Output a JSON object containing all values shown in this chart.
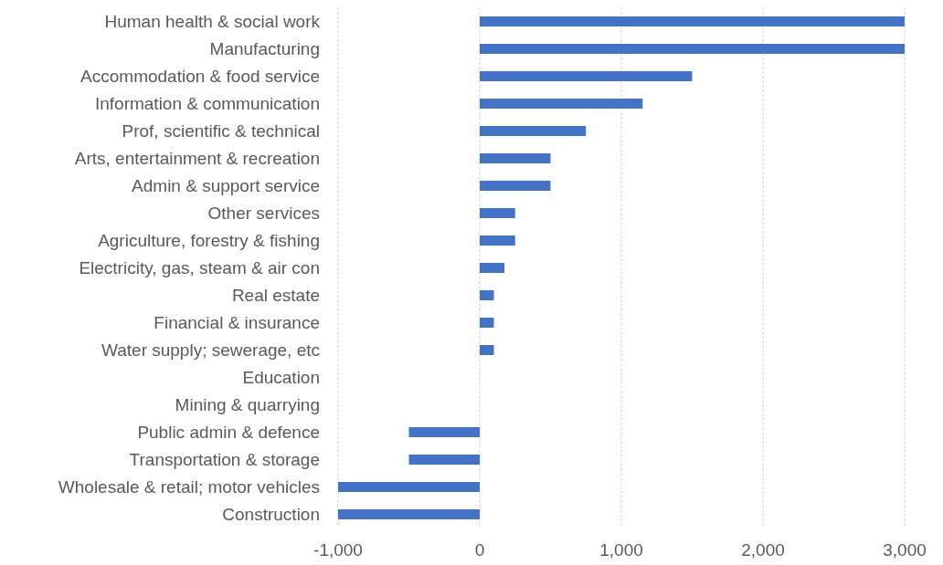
{
  "chart_data": {
    "type": "bar",
    "orientation": "horizontal",
    "categories": [
      "Human health & social work",
      "Manufacturing",
      "Accommodation & food service ",
      "Information & communication",
      "Prof, scientific & technical",
      "Arts, entertainment & recreation",
      "Admin & support service",
      "Other services",
      "Agriculture, forestry & fishing",
      "Electricity, gas, steam & air con",
      "Real estate",
      "Financial & insurance",
      "Water supply; sewerage, etc",
      "Education",
      "Mining & quarrying",
      "Public admin & defence",
      "Transportation & storage",
      "Wholesale & retail; motor vehicles",
      "Construction"
    ],
    "values": [
      3000,
      3000,
      1500,
      1150,
      750,
      500,
      500,
      250,
      250,
      175,
      100,
      100,
      100,
      0,
      0,
      -500,
      -500,
      -1000,
      -1000
    ],
    "color": "#4472c4",
    "xlim": [
      -1000,
      3000
    ],
    "xticks": [
      {
        "value": -1000,
        "label": "-1,000"
      },
      0,
      {
        "value": 1000,
        "label": "1,000"
      },
      {
        "value": 2000,
        "label": "2,000"
      },
      {
        "value": 3000,
        "label": "3,000"
      }
    ],
    "grid": "x"
  }
}
